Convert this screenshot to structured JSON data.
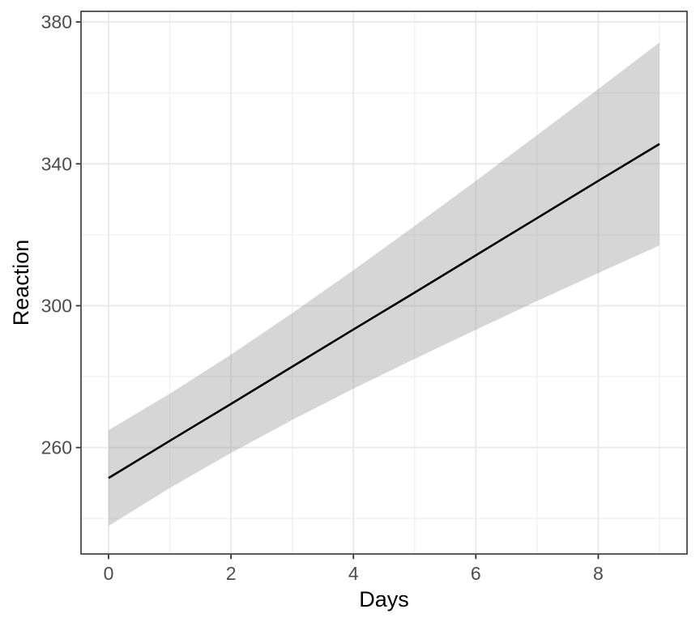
{
  "chart_data": {
    "type": "line",
    "title": "",
    "xlabel": "Days",
    "ylabel": "Reaction",
    "x": [
      0,
      1,
      2,
      3,
      4,
      5,
      6,
      7,
      8,
      9
    ],
    "series": [
      {
        "name": "fitted",
        "values": [
          251.4,
          261.9,
          272.3,
          282.8,
          293.3,
          303.7,
          314.2,
          324.7,
          335.2,
          345.6
        ]
      },
      {
        "name": "ci_lower",
        "values": [
          237.9,
          248.6,
          258.5,
          267.8,
          276.6,
          285.0,
          293.2,
          301.3,
          309.2,
          317.0
        ]
      },
      {
        "name": "ci_upper",
        "values": [
          264.9,
          275.2,
          286.2,
          297.9,
          310.0,
          322.5,
          335.2,
          348.1,
          361.1,
          374.2
        ]
      }
    ],
    "x_ticks": [
      0,
      2,
      4,
      6,
      8
    ],
    "y_ticks": [
      260,
      300,
      340,
      380
    ],
    "x_minor_grid": [
      1,
      3,
      5,
      7,
      9
    ],
    "y_minor_grid": [
      240,
      280,
      320,
      360
    ],
    "xlim": [
      -0.45,
      9.45
    ],
    "ylim": [
      230,
      383
    ],
    "grid": true,
    "legend": "none",
    "colors": {
      "line": "#000000",
      "ribbon_fill": "rgba(153,153,153,0.40)",
      "grid_major": "#eaeaea",
      "grid_minor": "#f1f1f1",
      "panel_border": "#333333",
      "tick_mark": "#333333",
      "tick_text": "#4d4d4d",
      "title_text": "#000000",
      "background": "#ffffff"
    }
  }
}
